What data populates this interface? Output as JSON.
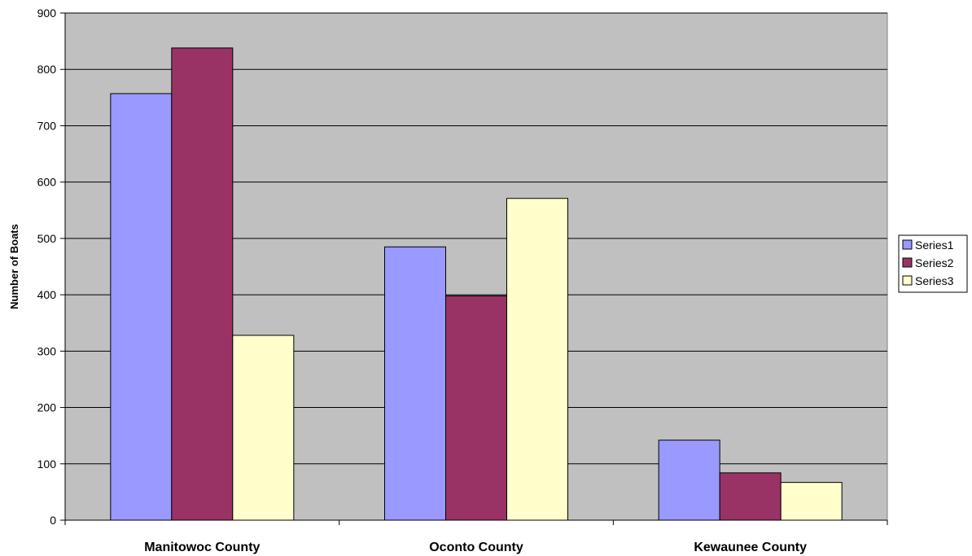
{
  "chart_data": {
    "type": "bar",
    "title": "",
    "xlabel": "",
    "ylabel": "Number of Boats",
    "ylim": [
      0,
      900
    ],
    "yticks": [
      0,
      100,
      200,
      300,
      400,
      500,
      600,
      700,
      800,
      900
    ],
    "grid": true,
    "legend_position": "right",
    "plot_background": "#c0c0c0",
    "categories": [
      "Manitowoc County",
      "Oconto County",
      "Kewaunee County"
    ],
    "series": [
      {
        "name": "Series1",
        "color": "#9999ff",
        "values": [
          757,
          485,
          142
        ]
      },
      {
        "name": "Series2",
        "color": "#993366",
        "values": [
          838,
          398,
          84
        ]
      },
      {
        "name": "Series3",
        "color": "#ffffcc",
        "values": [
          328,
          571,
          67
        ]
      }
    ]
  }
}
